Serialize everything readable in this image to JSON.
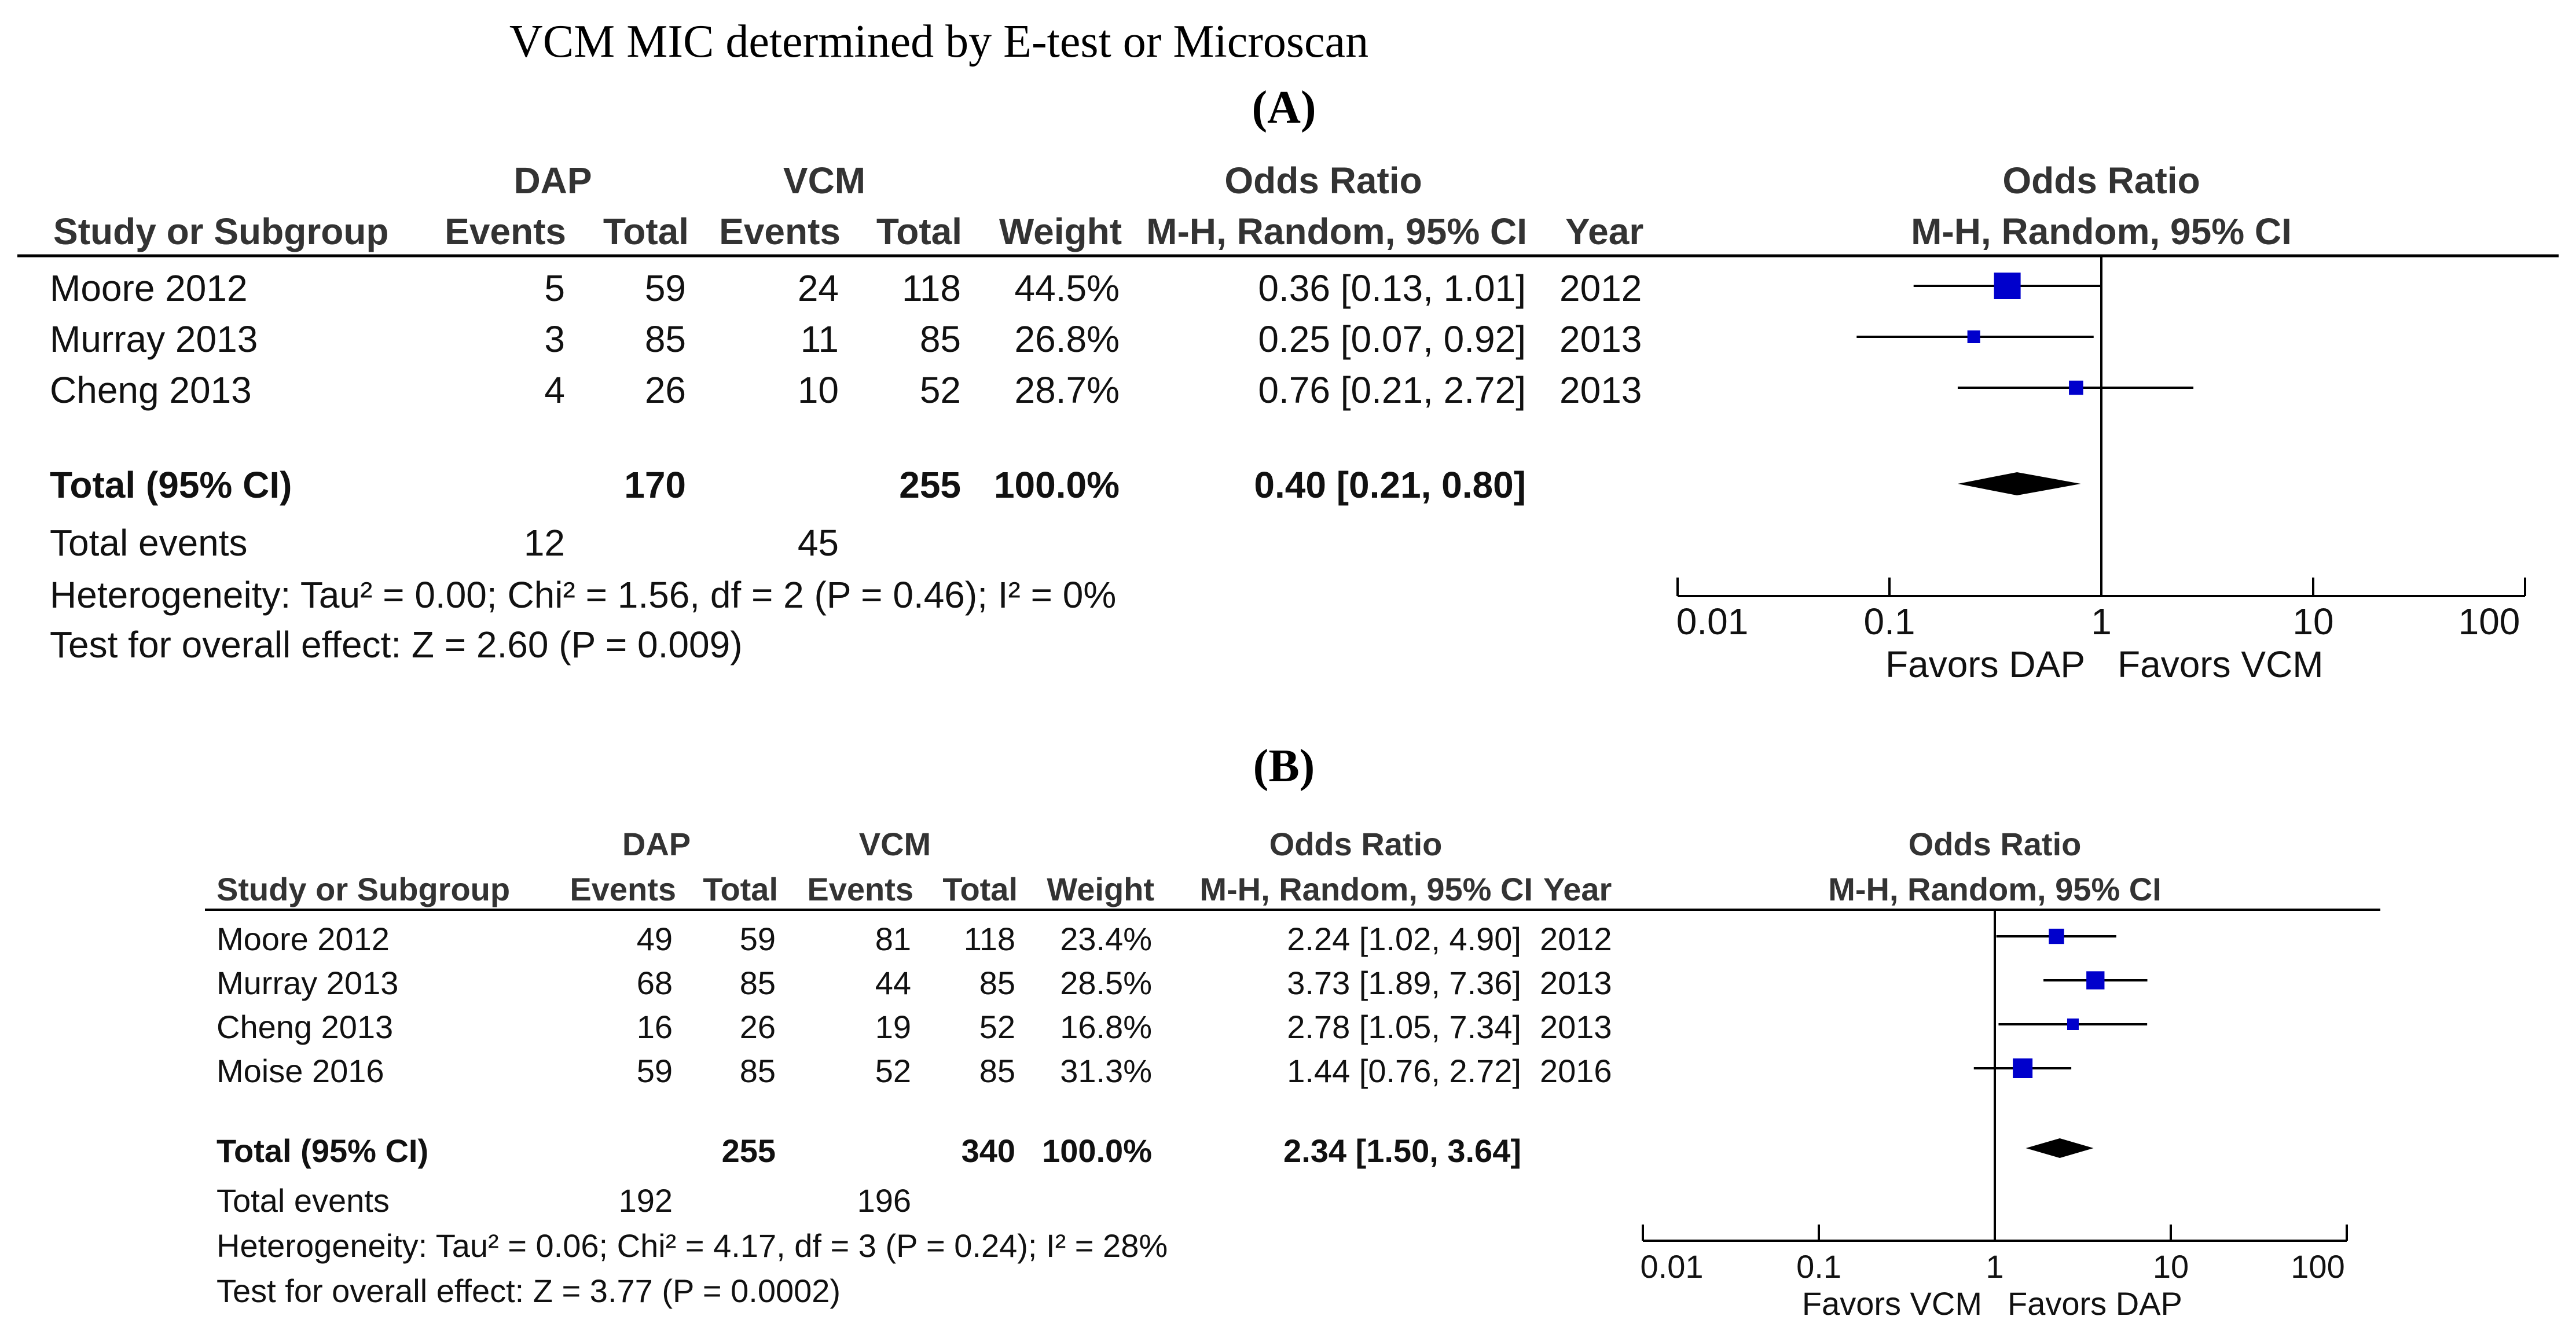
{
  "figure_title": "VCM MIC determined by E-test or Microscan",
  "panels": [
    {
      "label": "A",
      "label_text": "(A)",
      "group_headers": {
        "dap": "DAP",
        "vcm": "VCM",
        "odds_ratio": "Odds Ratio",
        "plot_odds_ratio": "Odds Ratio"
      },
      "column_headers": {
        "study": "Study or Subgroup",
        "dap_events": "Events",
        "dap_total": "Total",
        "vcm_events": "Events",
        "vcm_total": "Total",
        "weight": "Weight",
        "or_method": "M-H, Random, 95% CI",
        "year": "Year",
        "plot_method": "M-H, Random, 95% CI"
      },
      "studies": [
        {
          "name": "Moore 2012",
          "dap_events": "5",
          "dap_total": "59",
          "vcm_events": "24",
          "vcm_total": "118",
          "weight": "44.5%",
          "or_text": "0.36 [0.13, 1.01]",
          "year": "2012"
        },
        {
          "name": "Murray 2013",
          "dap_events": "3",
          "dap_total": "85",
          "vcm_events": "11",
          "vcm_total": "85",
          "weight": "26.8%",
          "or_text": "0.25 [0.07, 0.92]",
          "year": "2013"
        },
        {
          "name": "Cheng 2013",
          "dap_events": "4",
          "dap_total": "26",
          "vcm_events": "10",
          "vcm_total": "52",
          "weight": "28.7%",
          "or_text": "0.76 [0.21, 2.72]",
          "year": "2013"
        }
      ],
      "total": {
        "label": "Total (95% CI)",
        "dap_total": "170",
        "vcm_total": "255",
        "weight": "100.0%",
        "or_text": "0.40 [0.21, 0.80]"
      },
      "total_events": {
        "label": "Total events",
        "dap": "12",
        "vcm": "45"
      },
      "heterogeneity": "Heterogeneity: Tau² = 0.00; Chi² = 1.56, df = 2 (P = 0.46); I² = 0%",
      "overall_effect": "Test for overall effect: Z = 2.60 (P = 0.009)",
      "axis": {
        "ticks": [
          "0.01",
          "0.1",
          "1",
          "10",
          "100"
        ],
        "favors_left": "Favors DAP",
        "favors_right": "Favors VCM"
      }
    },
    {
      "label": "B",
      "label_text": "(B)",
      "group_headers": {
        "dap": "DAP",
        "vcm": "VCM",
        "odds_ratio": "Odds Ratio",
        "plot_odds_ratio": "Odds Ratio"
      },
      "column_headers": {
        "study": "Study or Subgroup",
        "dap_events": "Events",
        "dap_total": "Total",
        "vcm_events": "Events",
        "vcm_total": "Total",
        "weight": "Weight",
        "or_method": "M-H, Random, 95% CI",
        "year": "Year",
        "plot_method": "M-H, Random, 95% CI"
      },
      "studies": [
        {
          "name": "Moore 2012",
          "dap_events": "49",
          "dap_total": "59",
          "vcm_events": "81",
          "vcm_total": "118",
          "weight": "23.4%",
          "or_text": "2.24 [1.02, 4.90]",
          "year": "2012"
        },
        {
          "name": "Murray 2013",
          "dap_events": "68",
          "dap_total": "85",
          "vcm_events": "44",
          "vcm_total": "85",
          "weight": "28.5%",
          "or_text": "3.73 [1.89, 7.36]",
          "year": "2013"
        },
        {
          "name": "Cheng 2013",
          "dap_events": "16",
          "dap_total": "26",
          "vcm_events": "19",
          "vcm_total": "52",
          "weight": "16.8%",
          "or_text": "2.78 [1.05, 7.34]",
          "year": "2013"
        },
        {
          "name": "Moise 2016",
          "dap_events": "59",
          "dap_total": "85",
          "vcm_events": "52",
          "vcm_total": "85",
          "weight": "31.3%",
          "or_text": "1.44 [0.76, 2.72]",
          "year": "2016"
        }
      ],
      "total": {
        "label": "Total (95% CI)",
        "dap_total": "255",
        "vcm_total": "340",
        "weight": "100.0%",
        "or_text": "2.34 [1.50, 3.64]"
      },
      "total_events": {
        "label": "Total events",
        "dap": "192",
        "vcm": "196"
      },
      "heterogeneity": "Heterogeneity: Tau² = 0.06; Chi² = 4.17, df = 3 (P = 0.24); I² = 28%",
      "overall_effect": "Test for overall effect: Z = 3.77 (P = 0.0002)",
      "axis": {
        "ticks": [
          "0.01",
          "0.1",
          "1",
          "10",
          "100"
        ],
        "favors_left": "Favors VCM",
        "favors_right": "Favors DAP"
      }
    }
  ],
  "colors": {
    "marker": "#0000cc",
    "diamond": "#000000",
    "line": "#000000"
  },
  "chart_data": [
    {
      "type": "forest",
      "title": "(A)",
      "scale": "log",
      "xlim": [
        0.01,
        100
      ],
      "null_value": 1,
      "series": [
        {
          "name": "Moore 2012",
          "or": 0.36,
          "ci": [
            0.13,
            1.01
          ],
          "weight": 44.5
        },
        {
          "name": "Murray 2013",
          "or": 0.25,
          "ci": [
            0.07,
            0.92
          ],
          "weight": 26.8
        },
        {
          "name": "Cheng 2013",
          "or": 0.76,
          "ci": [
            0.21,
            2.72
          ],
          "weight": 28.7
        }
      ],
      "pooled": {
        "name": "Total (95% CI)",
        "or": 0.4,
        "ci": [
          0.21,
          0.8
        ]
      },
      "xlabel_left": "Favors DAP",
      "xlabel_right": "Favors VCM"
    },
    {
      "type": "forest",
      "title": "(B)",
      "scale": "log",
      "xlim": [
        0.01,
        100
      ],
      "null_value": 1,
      "series": [
        {
          "name": "Moore 2012",
          "or": 2.24,
          "ci": [
            1.02,
            4.9
          ],
          "weight": 23.4
        },
        {
          "name": "Murray 2013",
          "or": 3.73,
          "ci": [
            1.89,
            7.36
          ],
          "weight": 28.5
        },
        {
          "name": "Cheng 2013",
          "or": 2.78,
          "ci": [
            1.05,
            7.34
          ],
          "weight": 16.8
        },
        {
          "name": "Moise 2016",
          "or": 1.44,
          "ci": [
            0.76,
            2.72
          ],
          "weight": 31.3
        }
      ],
      "pooled": {
        "name": "Total (95% CI)",
        "or": 2.34,
        "ci": [
          1.5,
          3.64
        ]
      },
      "xlabel_left": "Favors VCM",
      "xlabel_right": "Favors DAP"
    }
  ]
}
